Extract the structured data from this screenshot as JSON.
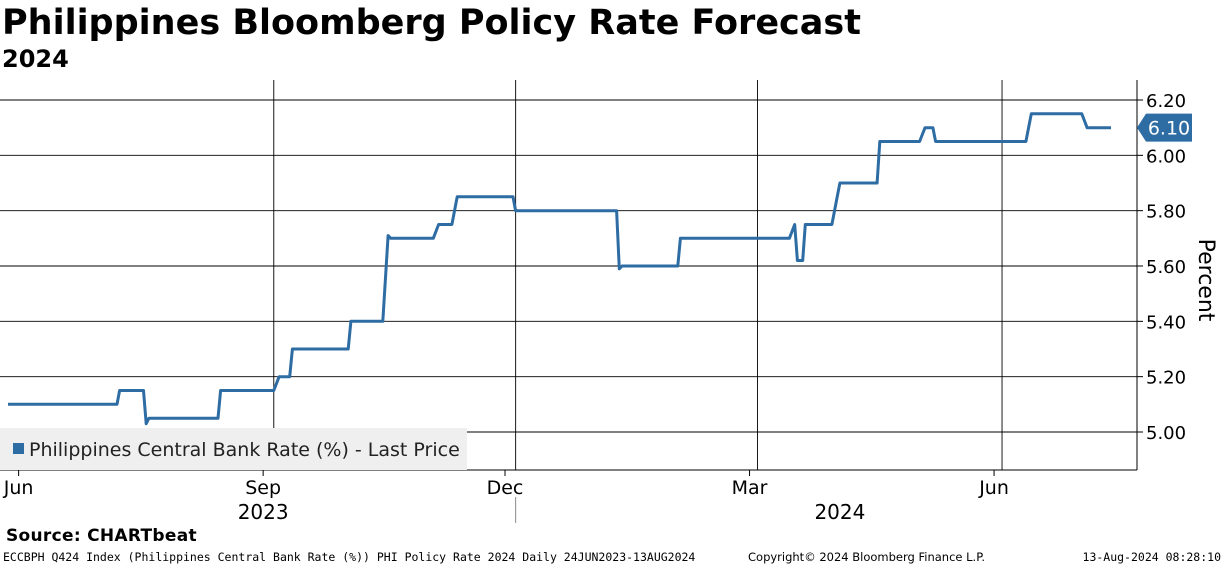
{
  "chart_data": {
    "type": "line",
    "title": "Philippines Bloomberg Policy Rate Forecast",
    "subtitle": "2024",
    "ylabel": "Percent",
    "xlabel": "",
    "ylim": [
      4.86,
      6.25
    ],
    "yticks": [
      "6.20",
      "6.00",
      "5.80",
      "5.60",
      "5.40",
      "5.20",
      "5.00"
    ],
    "ytick_values": [
      6.2,
      6.0,
      5.8,
      5.6,
      5.4,
      5.2,
      5.0
    ],
    "xlim": [
      0,
      415
    ],
    "month_labels": [
      {
        "label": "Jun",
        "day": 4
      },
      {
        "label": "Sep",
        "day": 96
      },
      {
        "label": "Dec",
        "day": 187
      },
      {
        "label": "Mar",
        "day": 279
      },
      {
        "label": "Jun",
        "day": 371
      }
    ],
    "year_labels": [
      {
        "label": "2023",
        "day": 96
      },
      {
        "label": "2024",
        "day": 313
      }
    ],
    "year_divider_day": 191,
    "grid_days": [
      100,
      191,
      282,
      374
    ],
    "series": [
      {
        "name": "Philippines Central Bank Rate (%) - Last Price",
        "color": "#2e6ca4",
        "last_value": "6.10",
        "points": [
          [
            0,
            5.1
          ],
          [
            41,
            5.1
          ],
          [
            42,
            5.15
          ],
          [
            51,
            5.15
          ],
          [
            52,
            5.03
          ],
          [
            53,
            5.05
          ],
          [
            79,
            5.05
          ],
          [
            80,
            5.15
          ],
          [
            100,
            5.15
          ],
          [
            102,
            5.2
          ],
          [
            106,
            5.2
          ],
          [
            107,
            5.3
          ],
          [
            128,
            5.3
          ],
          [
            129,
            5.4
          ],
          [
            141,
            5.4
          ],
          [
            143,
            5.71
          ],
          [
            144,
            5.7
          ],
          [
            160,
            5.7
          ],
          [
            162,
            5.75
          ],
          [
            167,
            5.75
          ],
          [
            169,
            5.85
          ],
          [
            190,
            5.85
          ],
          [
            191,
            5.8
          ],
          [
            229,
            5.8
          ],
          [
            230,
            5.59
          ],
          [
            231,
            5.6
          ],
          [
            252,
            5.6
          ],
          [
            253,
            5.7
          ],
          [
            294,
            5.7
          ],
          [
            296,
            5.75
          ],
          [
            297,
            5.62
          ],
          [
            299,
            5.62
          ],
          [
            300,
            5.75
          ],
          [
            310,
            5.75
          ],
          [
            312,
            5.85
          ],
          [
            313,
            5.9
          ],
          [
            327,
            5.9
          ],
          [
            328,
            6.05
          ],
          [
            343,
            6.05
          ],
          [
            345,
            6.1
          ],
          [
            348,
            6.1
          ],
          [
            349,
            6.05
          ],
          [
            383,
            6.05
          ],
          [
            385,
            6.15
          ],
          [
            404,
            6.15
          ],
          [
            406,
            6.1
          ],
          [
            415,
            6.1
          ]
        ]
      }
    ],
    "legend": {
      "label": "Philippines Central Bank Rate (%) - Last Price",
      "placement": "bottom-left"
    }
  },
  "source": "Source: CHARTbeat",
  "footer": {
    "left": "ECCBPH Q424 Index (Philippines Central Bank Rate (%)) PHI Policy Rate 2024  Daily 24JUN2023-13AUG2024",
    "center": "Copyright© 2024 Bloomberg Finance L.P.",
    "right": "13-Aug-2024 08:28:10"
  }
}
